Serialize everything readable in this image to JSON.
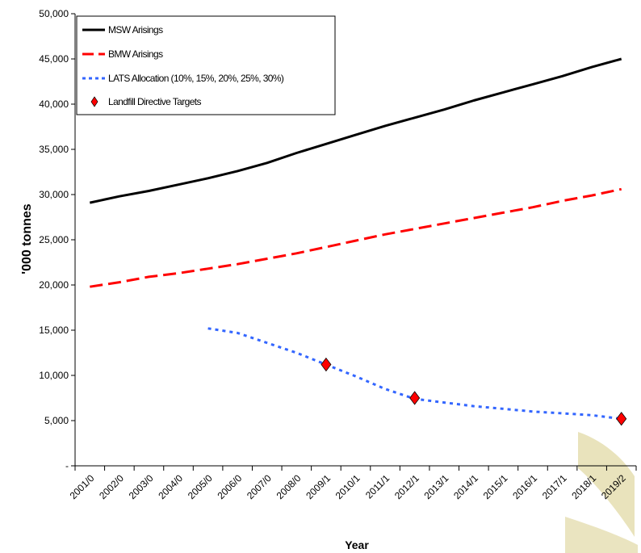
{
  "chart_data": {
    "type": "line",
    "xlabel": "Year",
    "ylabel": "'000 tonnes",
    "ylim": [
      0,
      50000
    ],
    "yticks": [
      0,
      5000,
      10000,
      15000,
      20000,
      25000,
      30000,
      35000,
      40000,
      45000,
      50000
    ],
    "ytick_labels": [
      "-",
      "5,000",
      "10,000",
      "15,000",
      "20,000",
      "25,000",
      "30,000",
      "35,000",
      "40,000",
      "45,000",
      "50,000"
    ],
    "categories": [
      "2001/0",
      "2002/0",
      "2003/0",
      "2004/0",
      "2005/0",
      "2006/0",
      "2007/0",
      "2008/0",
      "2009/1",
      "2010/1",
      "2011/1",
      "2012/1",
      "2013/1",
      "2014/1",
      "2015/1",
      "2016/1",
      "2017/1",
      "2018/1",
      "2019/2"
    ],
    "grid": false,
    "legend_position": "top-left",
    "series": [
      {
        "name": "MSW Arisings",
        "style": "solid",
        "color": "#000000",
        "values": [
          29100,
          29800,
          30400,
          31100,
          31800,
          32600,
          33500,
          34600,
          35600,
          36600,
          37600,
          38500,
          39400,
          40400,
          41300,
          42200,
          43100,
          44100,
          45000
        ]
      },
      {
        "name": "BMW Arisings",
        "style": "dashed",
        "color": "#ff0000",
        "values": [
          19800,
          20300,
          20900,
          21300,
          21800,
          22300,
          22900,
          23500,
          24200,
          24900,
          25600,
          26200,
          26800,
          27400,
          28000,
          28600,
          29300,
          29900,
          30600
        ]
      },
      {
        "name": "LATS Allocation (10%, 15%, 20%, 25%, 30%)",
        "style": "dotted",
        "color": "#3366ff",
        "values": [
          null,
          null,
          null,
          null,
          15200,
          14700,
          13600,
          12500,
          11200,
          9900,
          8500,
          7400,
          7000,
          6600,
          6300,
          6000,
          5800,
          5600,
          5200
        ]
      },
      {
        "name": "Landfill Directive Targets",
        "style": "marker",
        "color": "#ff0000",
        "values": [
          null,
          null,
          null,
          null,
          null,
          null,
          null,
          null,
          11200,
          null,
          null,
          7500,
          null,
          null,
          null,
          null,
          null,
          null,
          5200
        ]
      }
    ]
  }
}
